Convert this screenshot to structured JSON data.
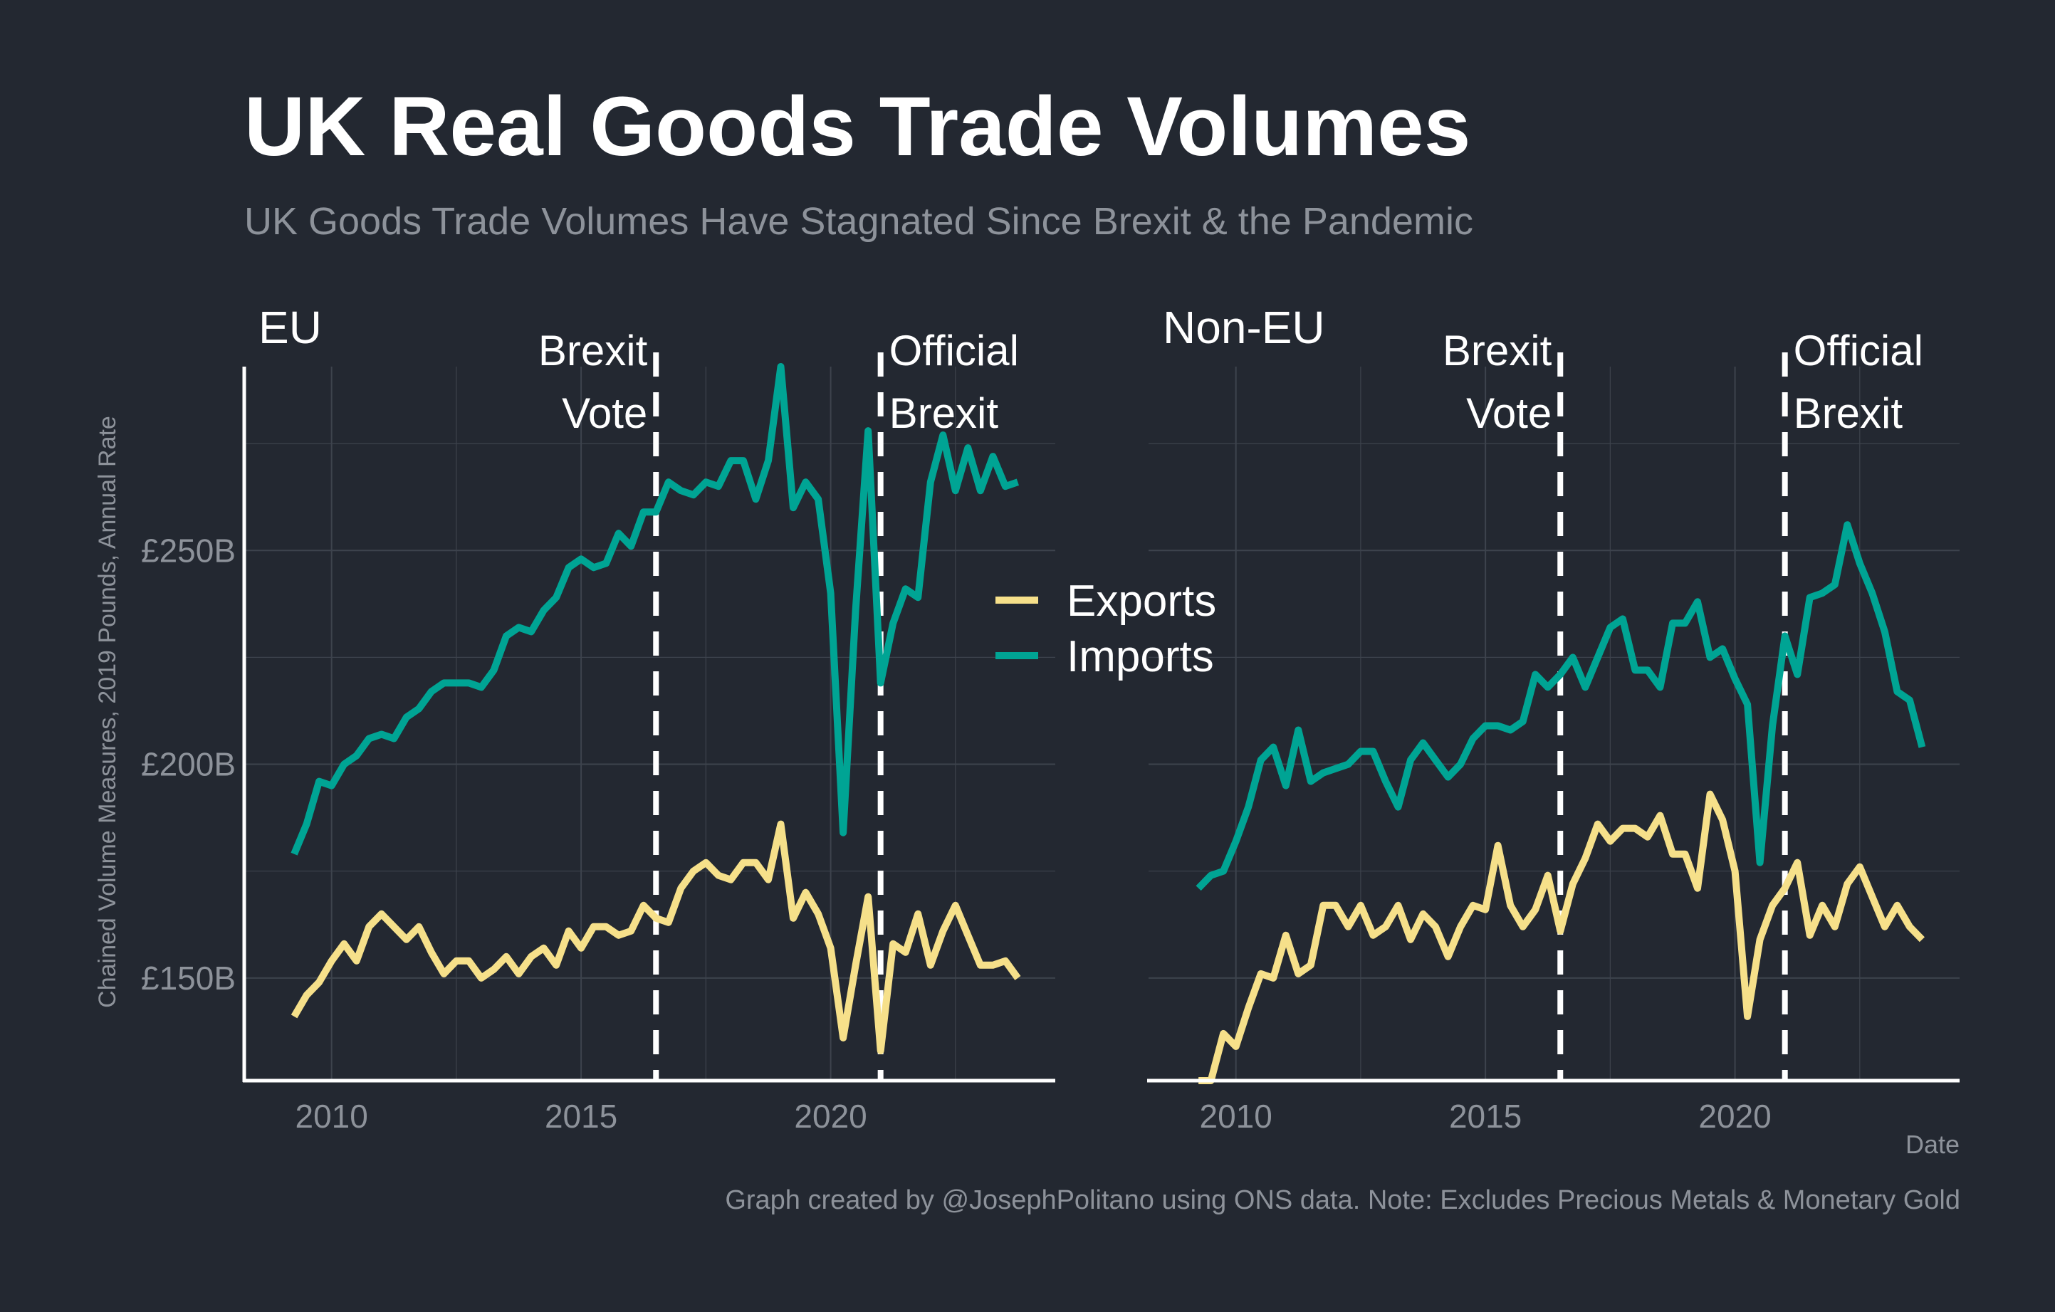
{
  "header": {
    "title": "UK Real Goods Trade Volumes",
    "subtitle": "UK Goods Trade Volumes Have Stagnated Since Brexit & the Pandemic"
  },
  "caption": "Graph created by @JosephPolitano using ONS data. Note: Excludes Precious Metals & Monetary Gold",
  "colors": {
    "background": "#232831",
    "exports": "#f6e08a",
    "imports": "#00a494",
    "grid": "#3d434d",
    "axis": "#ffffff",
    "tick_text": "#8d929a",
    "marker": "#ffffff"
  },
  "chart_data": {
    "type": "line",
    "ylabel": "Chained Volume Measures, 2019 Pounds, Annual Rate",
    "xlabel": "Date",
    "y_unit": "billions of pounds",
    "x_ticks": [
      2010,
      2015,
      2020
    ],
    "y_ticks": [
      {
        "value": 150,
        "label": "£150B"
      },
      {
        "value": 200,
        "label": "£200B"
      },
      {
        "value": 250,
        "label": "£250B"
      }
    ],
    "xlim": [
      2008.25,
      2024.5
    ],
    "ylim": [
      126,
      293
    ],
    "grid": true,
    "legend": {
      "position": "center",
      "entries": [
        {
          "name": "Exports",
          "color": "#f6e08a"
        },
        {
          "name": "Imports",
          "color": "#00a494"
        }
      ]
    },
    "annotations": [
      {
        "x": 2016.5,
        "label_lines": [
          "Brexit",
          "Vote"
        ],
        "align": "left-of-line"
      },
      {
        "x": 2021.0,
        "label_lines": [
          "Official",
          "Brexit"
        ],
        "align": "right-of-line"
      }
    ],
    "panels": [
      {
        "name": "EU",
        "series": [
          {
            "name": "Imports",
            "x": [
              2009.25,
              2009.5,
              2009.75,
              2010.0,
              2010.25,
              2010.5,
              2010.75,
              2011.0,
              2011.25,
              2011.5,
              2011.75,
              2012.0,
              2012.25,
              2012.5,
              2012.75,
              2013.0,
              2013.25,
              2013.5,
              2013.75,
              2014.0,
              2014.25,
              2014.5,
              2014.75,
              2015.0,
              2015.25,
              2015.5,
              2015.75,
              2016.0,
              2016.25,
              2016.5,
              2016.75,
              2017.0,
              2017.25,
              2017.5,
              2017.75,
              2018.0,
              2018.25,
              2018.5,
              2018.75,
              2019.0,
              2019.25,
              2019.5,
              2019.75,
              2020.0,
              2020.25,
              2020.5,
              2020.75,
              2021.0,
              2021.25,
              2021.5,
              2021.75,
              2022.0,
              2022.25,
              2022.5,
              2022.75,
              2023.0,
              2023.25,
              2023.5,
              2023.75
            ],
            "values": [
              179,
              186,
              196,
              195,
              200,
              202,
              206,
              207,
              206,
              211,
              213,
              217,
              219,
              219,
              219,
              218,
              222,
              230,
              232,
              231,
              236,
              239,
              246,
              248,
              246,
              247,
              254,
              251,
              259,
              259,
              266,
              264,
              263,
              266,
              265,
              271,
              271,
              262,
              271,
              294,
              260,
              266,
              262,
              240,
              184,
              236,
              278,
              219,
              233,
              241,
              239,
              266,
              277,
              264,
              274,
              264,
              272,
              265,
              266
            ]
          },
          {
            "name": "Exports",
            "x": [
              2009.25,
              2009.5,
              2009.75,
              2010.0,
              2010.25,
              2010.5,
              2010.75,
              2011.0,
              2011.25,
              2011.5,
              2011.75,
              2012.0,
              2012.25,
              2012.5,
              2012.75,
              2013.0,
              2013.25,
              2013.5,
              2013.75,
              2014.0,
              2014.25,
              2014.5,
              2014.75,
              2015.0,
              2015.25,
              2015.5,
              2015.75,
              2016.0,
              2016.25,
              2016.5,
              2016.75,
              2017.0,
              2017.25,
              2017.5,
              2017.75,
              2018.0,
              2018.25,
              2018.5,
              2018.75,
              2019.0,
              2019.25,
              2019.5,
              2019.75,
              2020.0,
              2020.25,
              2020.5,
              2020.75,
              2021.0,
              2021.25,
              2021.5,
              2021.75,
              2022.0,
              2022.25,
              2022.5,
              2022.75,
              2023.0,
              2023.25,
              2023.5,
              2023.75
            ],
            "values": [
              141,
              146,
              149,
              154,
              158,
              154,
              162,
              165,
              162,
              159,
              162,
              156,
              151,
              154,
              154,
              150,
              152,
              155,
              151,
              155,
              157,
              153,
              161,
              157,
              162,
              162,
              160,
              161,
              167,
              164,
              163,
              171,
              175,
              177,
              174,
              173,
              177,
              177,
              173,
              186,
              164,
              170,
              165,
              157,
              136,
              153,
              169,
              133,
              158,
              156,
              165,
              153,
              161,
              167,
              160,
              153,
              153,
              154,
              150
            ]
          }
        ]
      },
      {
        "name": "Non-EU",
        "series": [
          {
            "name": "Imports",
            "x": [
              2009.25,
              2009.5,
              2009.75,
              2010.0,
              2010.25,
              2010.5,
              2010.75,
              2011.0,
              2011.25,
              2011.5,
              2011.75,
              2012.0,
              2012.25,
              2012.5,
              2012.75,
              2013.0,
              2013.25,
              2013.5,
              2013.75,
              2014.0,
              2014.25,
              2014.5,
              2014.75,
              2015.0,
              2015.25,
              2015.5,
              2015.75,
              2016.0,
              2016.25,
              2016.5,
              2016.75,
              2017.0,
              2017.25,
              2017.5,
              2017.75,
              2018.0,
              2018.25,
              2018.5,
              2018.75,
              2019.0,
              2019.25,
              2019.5,
              2019.75,
              2020.0,
              2020.25,
              2020.5,
              2020.75,
              2021.0,
              2021.25,
              2021.5,
              2021.75,
              2022.0,
              2022.25,
              2022.5,
              2022.75,
              2023.0,
              2023.25,
              2023.5,
              2023.75
            ],
            "values": [
              171,
              174,
              175,
              182,
              190,
              201,
              204,
              195,
              208,
              196,
              198,
              199,
              200,
              203,
              203,
              196,
              190,
              201,
              205,
              201,
              197,
              200,
              206,
              209,
              209,
              208,
              210,
              221,
              218,
              221,
              225,
              218,
              225,
              232,
              234,
              222,
              222,
              218,
              233,
              233,
              238,
              225,
              227,
              220,
              214,
              177,
              209,
              230,
              221,
              239,
              240,
              242,
              256,
              247,
              240,
              231,
              217,
              215,
              204
            ]
          },
          {
            "name": "Exports",
            "x": [
              2009.25,
              2009.5,
              2009.75,
              2010.0,
              2010.25,
              2010.5,
              2010.75,
              2011.0,
              2011.25,
              2011.5,
              2011.75,
              2012.0,
              2012.25,
              2012.5,
              2012.75,
              2013.0,
              2013.25,
              2013.5,
              2013.75,
              2014.0,
              2014.25,
              2014.5,
              2014.75,
              2015.0,
              2015.25,
              2015.5,
              2015.75,
              2016.0,
              2016.25,
              2016.5,
              2016.75,
              2017.0,
              2017.25,
              2017.5,
              2017.75,
              2018.0,
              2018.25,
              2018.5,
              2018.75,
              2019.0,
              2019.25,
              2019.5,
              2019.75,
              2020.0,
              2020.25,
              2020.5,
              2020.75,
              2021.0,
              2021.25,
              2021.5,
              2021.75,
              2022.0,
              2022.25,
              2022.5,
              2022.75,
              2023.0,
              2023.25,
              2023.5,
              2023.75
            ],
            "values": [
              126,
              126,
              137,
              134,
              143,
              151,
              150,
              160,
              151,
              153,
              167,
              167,
              162,
              167,
              160,
              162,
              167,
              159,
              165,
              162,
              155,
              162,
              167,
              166,
              181,
              167,
              162,
              166,
              174,
              161,
              172,
              178,
              186,
              182,
              185,
              185,
              183,
              188,
              179,
              179,
              171,
              193,
              187,
              175,
              141,
              159,
              167,
              171,
              177,
              160,
              167,
              162,
              172,
              176,
              169,
              162,
              167,
              162,
              159
            ]
          }
        ]
      }
    ]
  }
}
